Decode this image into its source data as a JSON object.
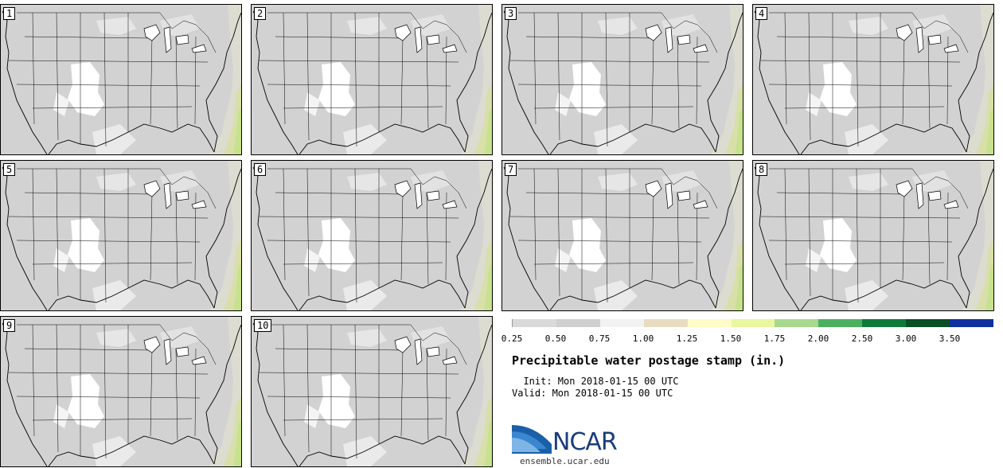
{
  "stamps": [
    {
      "label": "1"
    },
    {
      "label": "2"
    },
    {
      "label": "3"
    },
    {
      "label": "4"
    },
    {
      "label": "5"
    },
    {
      "label": "6"
    },
    {
      "label": "7"
    },
    {
      "label": "8"
    },
    {
      "label": "9"
    },
    {
      "label": "10"
    }
  ],
  "legend": {
    "ticks": [
      "0.25",
      "0.50",
      "0.75",
      "1.00",
      "1.25",
      "1.50",
      "1.75",
      "2.00",
      "2.50",
      "3.00",
      "3.50"
    ],
    "colors": [
      "#d9d9d9",
      "#cfcfcf",
      "#f2f2f2",
      "#e8dcc0",
      "#fffcc8",
      "#e8f7a0",
      "#a8d890",
      "#4caf60",
      "#0e7a3a",
      "#0a4f25",
      "#1030a0"
    ]
  },
  "title": "Precipitable water postage stamp (in.)",
  "init": "  Init: Mon 2018-01-15 00 UTC",
  "valid": "Valid: Mon 2018-01-15 00 UTC",
  "logo_text": "NCAR",
  "site": "ensemble.ucar.edu"
}
